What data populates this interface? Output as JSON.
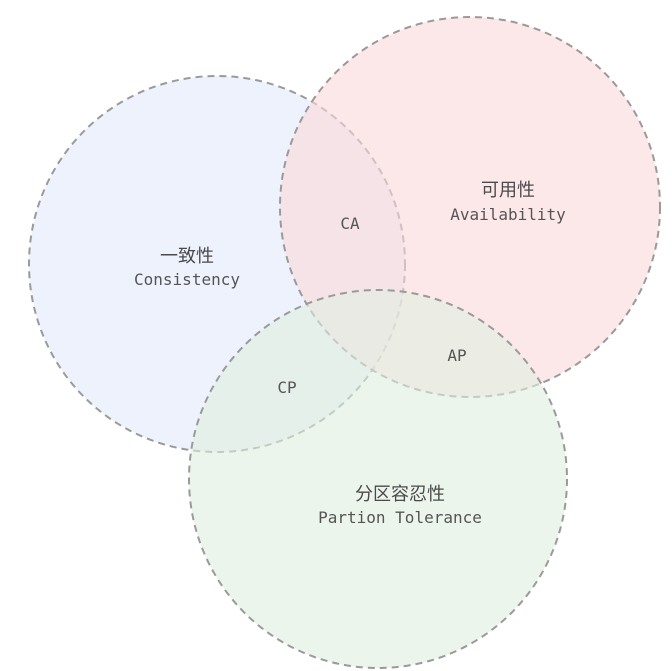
{
  "sets": {
    "consistency": {
      "name_cn": "一致性",
      "name_en": "Consistency",
      "fill": "#e8eefc"
    },
    "availability": {
      "name_cn": "可用性",
      "name_en": "Availability",
      "fill": "#fbd9da"
    },
    "partition": {
      "name_cn": "分区容忍性",
      "name_en": "Partion Tolerance",
      "fill": "#dfeedf"
    }
  },
  "intersections": {
    "ca": "CA",
    "cp": "CP",
    "ap": "AP"
  },
  "stroke_color": "#9a9a9a"
}
